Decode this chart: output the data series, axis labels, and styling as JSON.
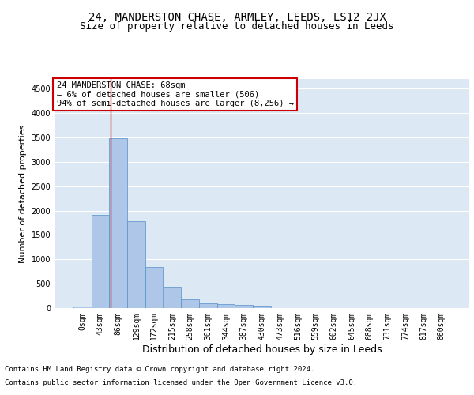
{
  "title1": "24, MANDERSTON CHASE, ARMLEY, LEEDS, LS12 2JX",
  "title2": "Size of property relative to detached houses in Leeds",
  "xlabel": "Distribution of detached houses by size in Leeds",
  "ylabel": "Number of detached properties",
  "categories": [
    "0sqm",
    "43sqm",
    "86sqm",
    "129sqm",
    "172sqm",
    "215sqm",
    "258sqm",
    "301sqm",
    "344sqm",
    "387sqm",
    "430sqm",
    "473sqm",
    "516sqm",
    "559sqm",
    "602sqm",
    "645sqm",
    "688sqm",
    "731sqm",
    "774sqm",
    "817sqm",
    "860sqm"
  ],
  "bar_values": [
    30,
    1920,
    3480,
    1780,
    840,
    440,
    175,
    100,
    75,
    65,
    50,
    0,
    0,
    0,
    0,
    0,
    0,
    0,
    0,
    0,
    0
  ],
  "bar_color": "#aec6e8",
  "bar_edge_color": "#5590c8",
  "property_line_x": 1.58,
  "annotation_text": "24 MANDERSTON CHASE: 68sqm\n← 6% of detached houses are smaller (506)\n94% of semi-detached houses are larger (8,256) →",
  "annotation_box_color": "#ffffff",
  "annotation_box_edge_color": "#cc0000",
  "vline_color": "#cc0000",
  "ylim": [
    0,
    4700
  ],
  "yticks": [
    0,
    500,
    1000,
    1500,
    2000,
    2500,
    3000,
    3500,
    4000,
    4500
  ],
  "footer1": "Contains HM Land Registry data © Crown copyright and database right 2024.",
  "footer2": "Contains public sector information licensed under the Open Government Licence v3.0.",
  "plot_bg_color": "#dce9f5",
  "fig_bg_color": "#ffffff",
  "grid_color": "#ffffff",
  "title1_fontsize": 10,
  "title2_fontsize": 9,
  "xlabel_fontsize": 9,
  "ylabel_fontsize": 8,
  "tick_fontsize": 7,
  "annotation_fontsize": 7.5,
  "footer_fontsize": 6.5
}
